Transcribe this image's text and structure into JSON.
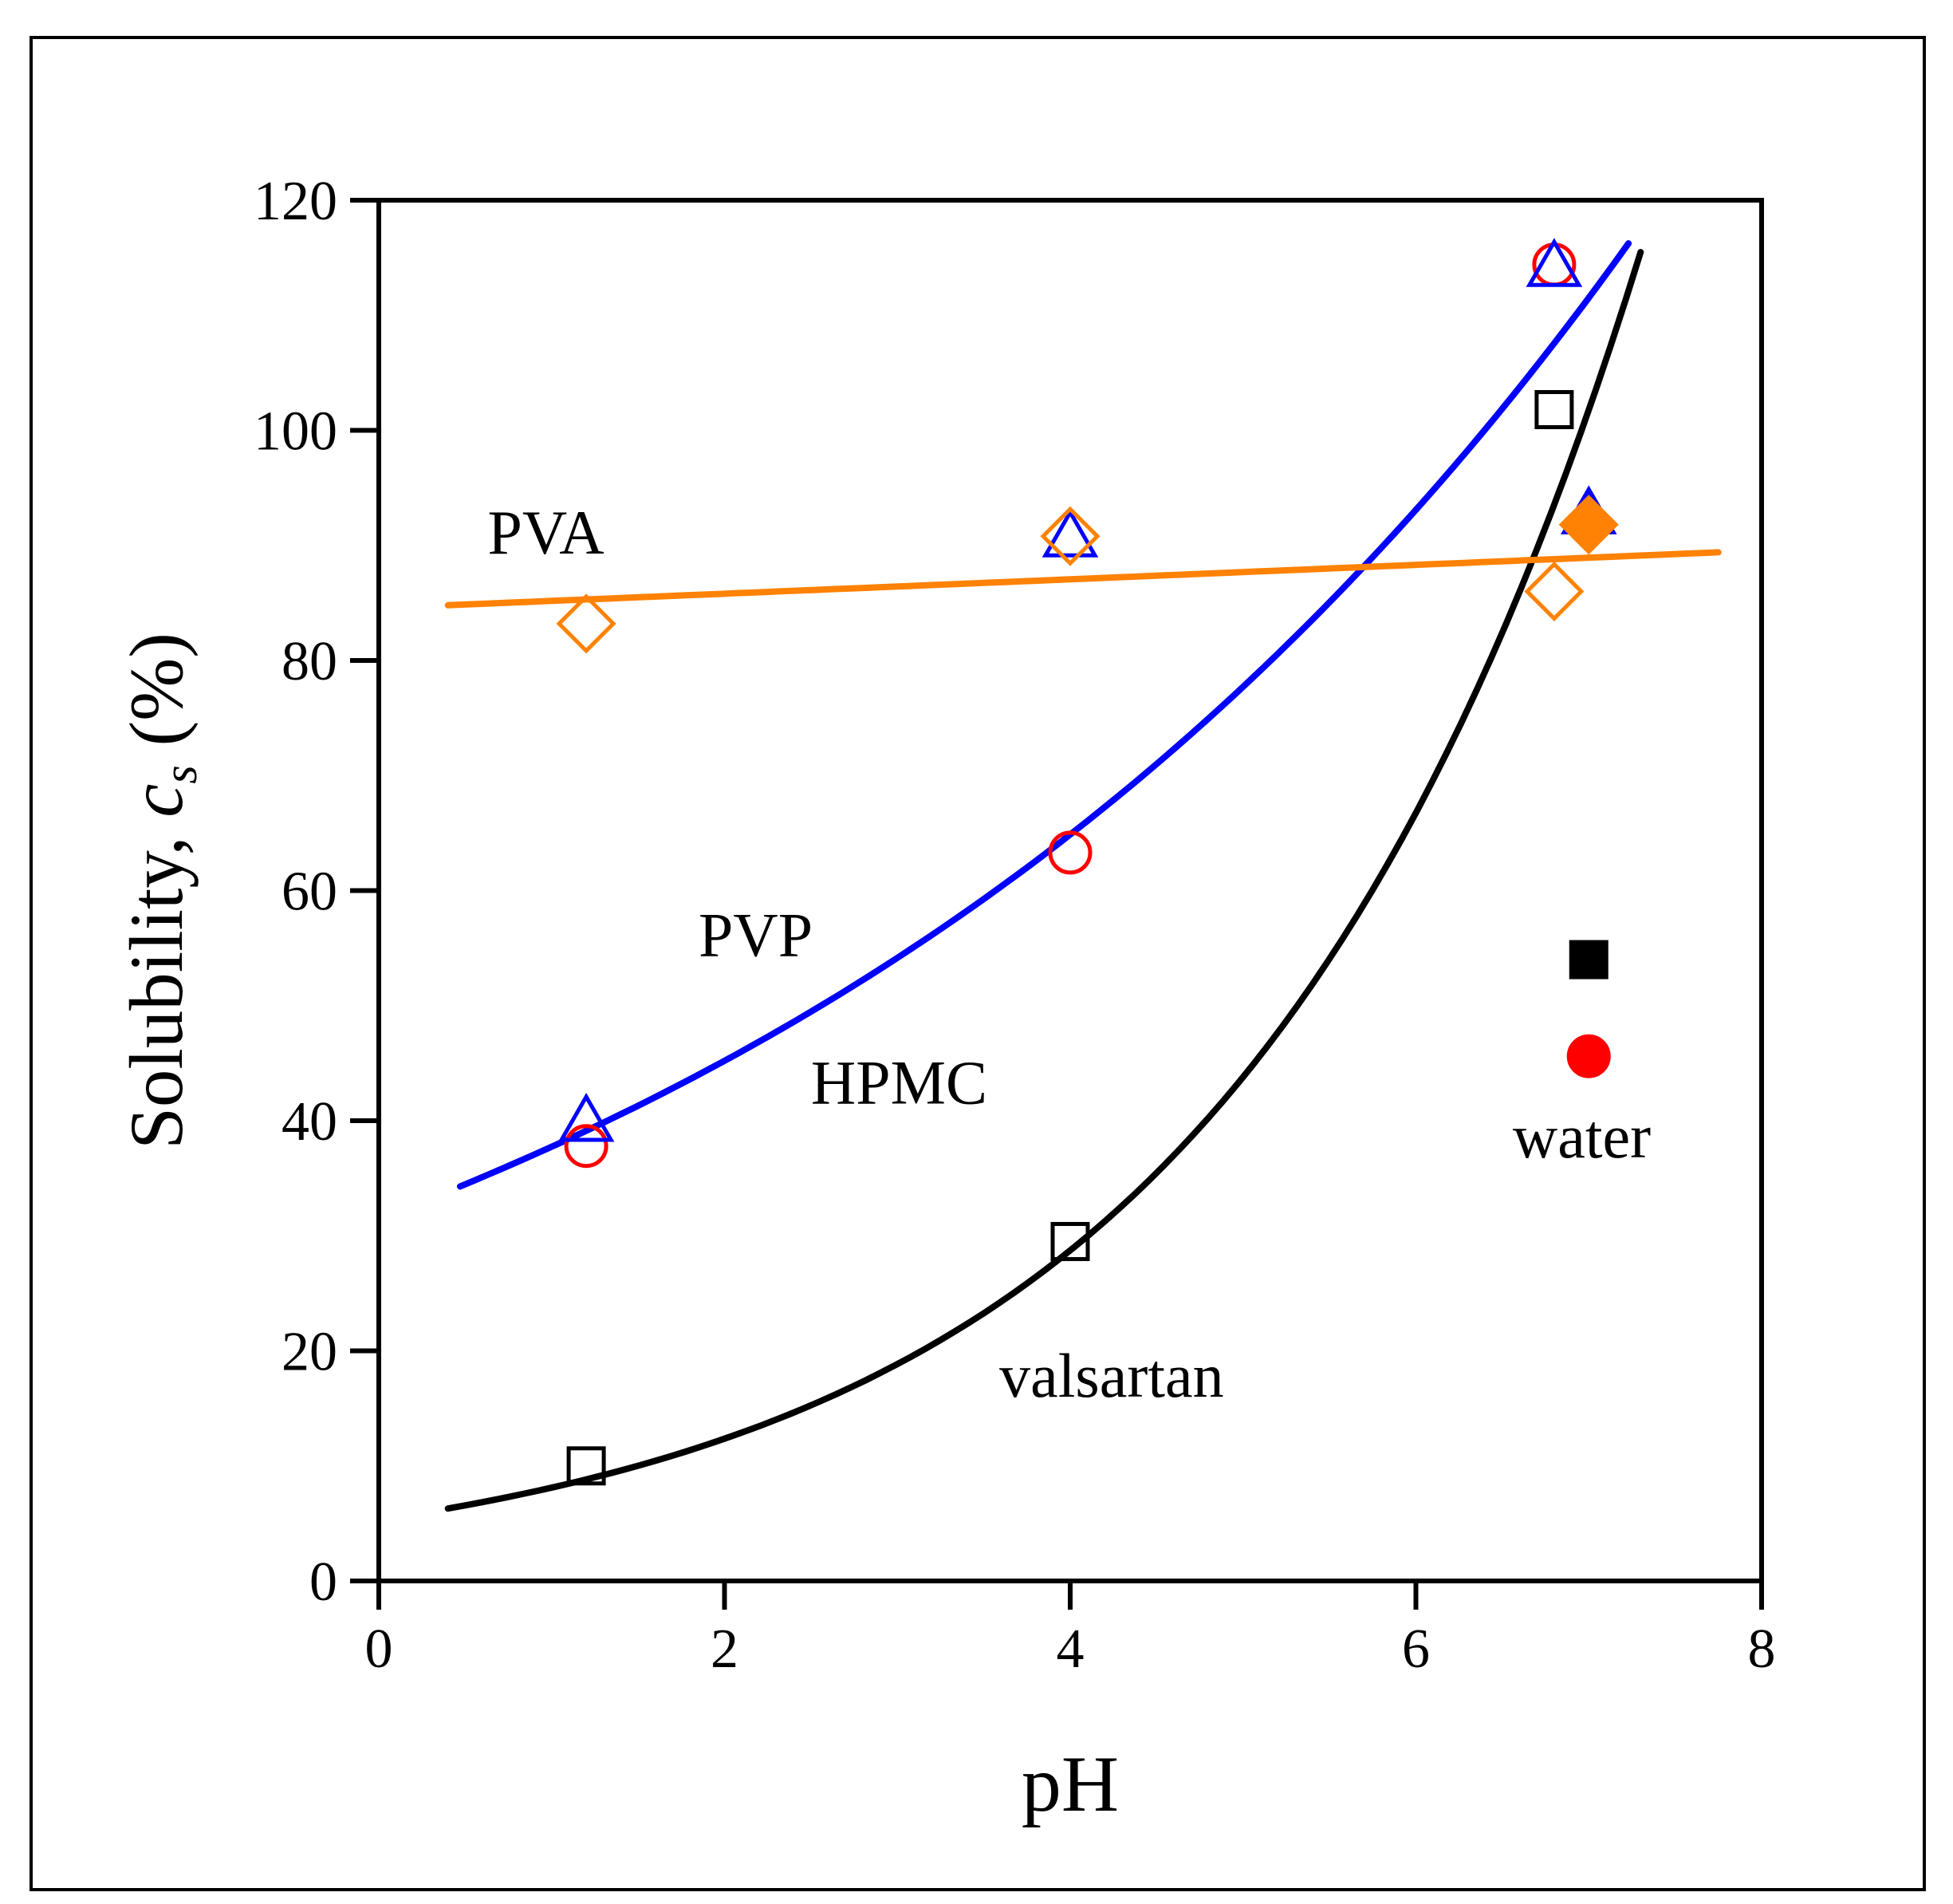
{
  "chart_data": {
    "type": "scatter",
    "title": "",
    "xlabel": "pH",
    "ylabel_main": "Solubility, ",
    "ylabel_symbol": "c",
    "ylabel_sub": "s",
    "ylabel_unit": " (%)",
    "xlim": [
      0,
      8
    ],
    "ylim": [
      0,
      120
    ],
    "xticks": [
      "0",
      "2",
      "4",
      "6",
      "8"
    ],
    "xtick_values": [
      0,
      2,
      4,
      6,
      8
    ],
    "yticks": [
      "0",
      "20",
      "40",
      "60",
      "80",
      "100",
      "120"
    ],
    "ytick_values": [
      0,
      20,
      40,
      60,
      80,
      100,
      120
    ],
    "grid": false,
    "colors": {
      "valsartan": "#000000",
      "HPMC": "#ff0000",
      "PVP": "#0000ff",
      "PVA": "#ff8205"
    },
    "series": [
      {
        "name": "valsartan",
        "marker": "square",
        "x": [
          1.2,
          4.0,
          6.8
        ],
        "y": [
          10.0,
          29.5,
          101.8
        ],
        "water": {
          "x": 7.0,
          "y": 54.0
        }
      },
      {
        "name": "HPMC",
        "marker": "circle",
        "x": [
          1.2,
          4.0,
          6.8
        ],
        "y": [
          37.8,
          63.3,
          114.4
        ],
        "water": {
          "x": 7.0,
          "y": 45.6
        }
      },
      {
        "name": "PVP",
        "marker": "triangle",
        "x": [
          1.2,
          4.0,
          6.8
        ],
        "y": [
          40.0,
          90.8,
          114.3
        ],
        "water": {
          "x": 7.0,
          "y": 92.8
        }
      },
      {
        "name": "PVA",
        "marker": "diamond",
        "x": [
          1.2,
          4.0,
          6.8
        ],
        "y": [
          83.2,
          90.8,
          86.0
        ],
        "water": {
          "x": 7.0,
          "y": 91.8
        }
      }
    ],
    "fits": [
      {
        "name": "valsartan-fit",
        "model": "exponential",
        "a": 5.32,
        "b": 0.4216,
        "x_range": [
          0.4,
          7.3
        ]
      },
      {
        "name": "PVP-fit",
        "model": "exponential",
        "a": 31.5,
        "b": 0.1806,
        "x_range": [
          0.47,
          7.23
        ]
      },
      {
        "name": "PVA-fit",
        "model": "linear",
        "intercept": 84.55,
        "slope": 0.626,
        "x_range": [
          0.4,
          7.75
        ]
      }
    ],
    "annotations": [
      "PVA",
      "PVP",
      "HPMC",
      "valsartan",
      "water"
    ]
  }
}
